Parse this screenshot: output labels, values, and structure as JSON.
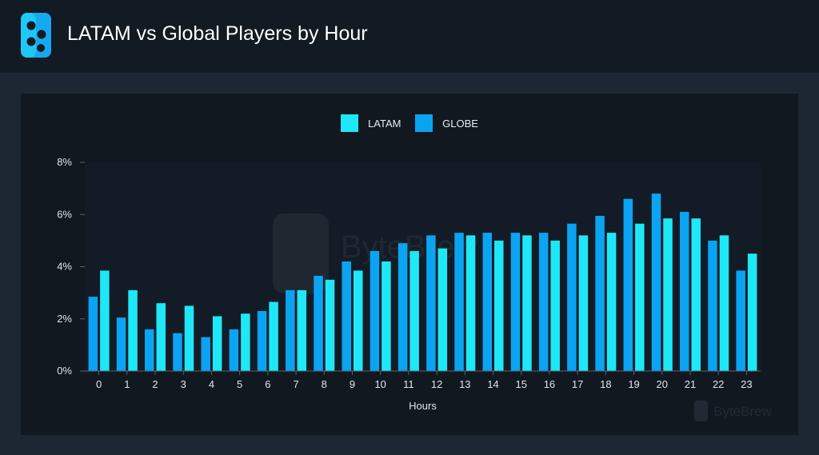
{
  "header": {
    "title": "LATAM vs Global Players by Hour",
    "background": "#121a23",
    "logo_icon": "bytebrew-logo-icon"
  },
  "watermark": {
    "text": "ByteBrew",
    "icon": "bytebrew-logo-icon"
  },
  "colors": {
    "page": "#1c2733",
    "panel": "#111820",
    "plot": "#131c26",
    "latam": "#1ee8f7",
    "globe": "#0aa4f2"
  },
  "chart_data": {
    "type": "bar",
    "title": "",
    "xlabel": "Hours",
    "ylabel": "",
    "ylim": [
      0,
      8
    ],
    "yticks": [
      "0%",
      "2%",
      "4%",
      "6%",
      "8%"
    ],
    "legend": "top-center",
    "grid": false,
    "categories": [
      "0",
      "1",
      "2",
      "3",
      "4",
      "5",
      "6",
      "7",
      "8",
      "9",
      "10",
      "11",
      "12",
      "13",
      "14",
      "15",
      "16",
      "17",
      "18",
      "19",
      "20",
      "21",
      "22",
      "23"
    ],
    "series": [
      {
        "name": "LATAM",
        "color": "#1ee8f7",
        "values": [
          3.85,
          3.1,
          2.6,
          2.5,
          2.1,
          2.2,
          2.65,
          3.1,
          3.5,
          3.85,
          4.2,
          4.6,
          4.7,
          5.2,
          5.0,
          5.2,
          5.0,
          5.2,
          5.3,
          5.65,
          5.85,
          5.85,
          5.2,
          4.5
        ]
      },
      {
        "name": "GLOBE",
        "color": "#0aa4f2",
        "values": [
          2.85,
          2.05,
          1.6,
          1.45,
          1.3,
          1.6,
          2.3,
          3.1,
          3.65,
          4.2,
          4.6,
          4.9,
          5.2,
          5.3,
          5.3,
          5.3,
          5.3,
          5.65,
          5.95,
          6.6,
          6.8,
          6.1,
          5.0,
          3.85
        ]
      }
    ],
    "bar_order": [
      "GLOBE",
      "LATAM"
    ]
  }
}
